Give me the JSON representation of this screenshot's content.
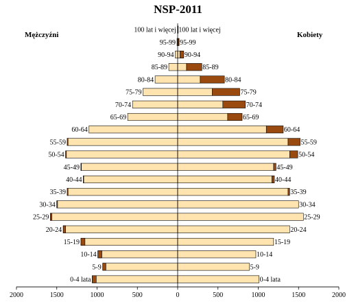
{
  "chart_data": {
    "type": "bar",
    "title": "NSP-2011",
    "left_label": "Mężczyźni",
    "right_label": "Kobiety",
    "categories": [
      "0-4 lata",
      "5-9",
      "10-14",
      "15-19",
      "20-24",
      "25-29",
      "30-34",
      "35-39",
      "40-44",
      "45-49",
      "50-54",
      "55-59",
      "60-64",
      "65-69",
      "70-74",
      "75-79",
      "80-84",
      "85-89",
      "90-94",
      "95-99",
      "100 lat i więcej"
    ],
    "men": {
      "total": [
        1060,
        930,
        990,
        1200,
        1420,
        1580,
        1500,
        1370,
        1170,
        1200,
        1390,
        1370,
        1100,
        620,
        560,
        430,
        280,
        110,
        30,
        8,
        2
      ],
      "dark": [
        50,
        40,
        50,
        50,
        30,
        20,
        10,
        10,
        5,
        5,
        10,
        10,
        0,
        0,
        0,
        0,
        0,
        0,
        0,
        0,
        0
      ]
    },
    "women": {
      "total": [
        1010,
        890,
        970,
        1190,
        1390,
        1560,
        1500,
        1390,
        1200,
        1220,
        1490,
        1520,
        1310,
        800,
        840,
        770,
        580,
        300,
        75,
        18,
        3
      ],
      "light": [
        1010,
        890,
        970,
        1190,
        1390,
        1560,
        1500,
        1370,
        1170,
        1190,
        1390,
        1370,
        1100,
        620,
        560,
        430,
        280,
        110,
        30,
        8,
        2
      ]
    },
    "xlim": [
      -2000,
      2000
    ],
    "xticks": [
      "2000",
      "1500",
      "1000",
      "500",
      "0",
      "500",
      "1000",
      "1500",
      "2000"
    ],
    "colors": {
      "light": "#FFE4B0",
      "dark": "#9A4A0E",
      "stroke": "#000000"
    }
  }
}
